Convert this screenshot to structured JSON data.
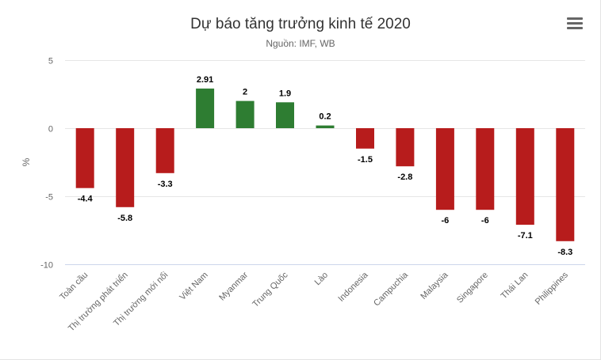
{
  "menu": {
    "icon": "hamburger-menu-icon",
    "color": "#666666"
  },
  "chart_data": {
    "type": "bar",
    "title": "Dự báo tăng trưởng kinh tế 2020",
    "subtitle": "Nguồn: IMF, WB",
    "xlabel": "",
    "ylabel": "%",
    "ylim": [
      -10,
      5
    ],
    "yticks": [
      5,
      0,
      -5,
      -10
    ],
    "grid": true,
    "legend": "none",
    "categories": [
      "Toàn cầu",
      "Thị trường phát triển",
      "Thị trường mới nổi",
      "Việt Nam",
      "Myanmar",
      "Trung Quốc",
      "Lào",
      "Indonesia",
      "Campuchia",
      "Malaysia",
      "Singapore",
      "Thái Lan",
      "Philippines"
    ],
    "values": [
      -4.4,
      -5.8,
      -3.3,
      2.91,
      2,
      1.9,
      0.2,
      -1.5,
      -2.8,
      -6,
      -6,
      -7.1,
      -8.3
    ],
    "colors": {
      "positive": "#2e7d32",
      "negative": "#b71c1c"
    }
  }
}
